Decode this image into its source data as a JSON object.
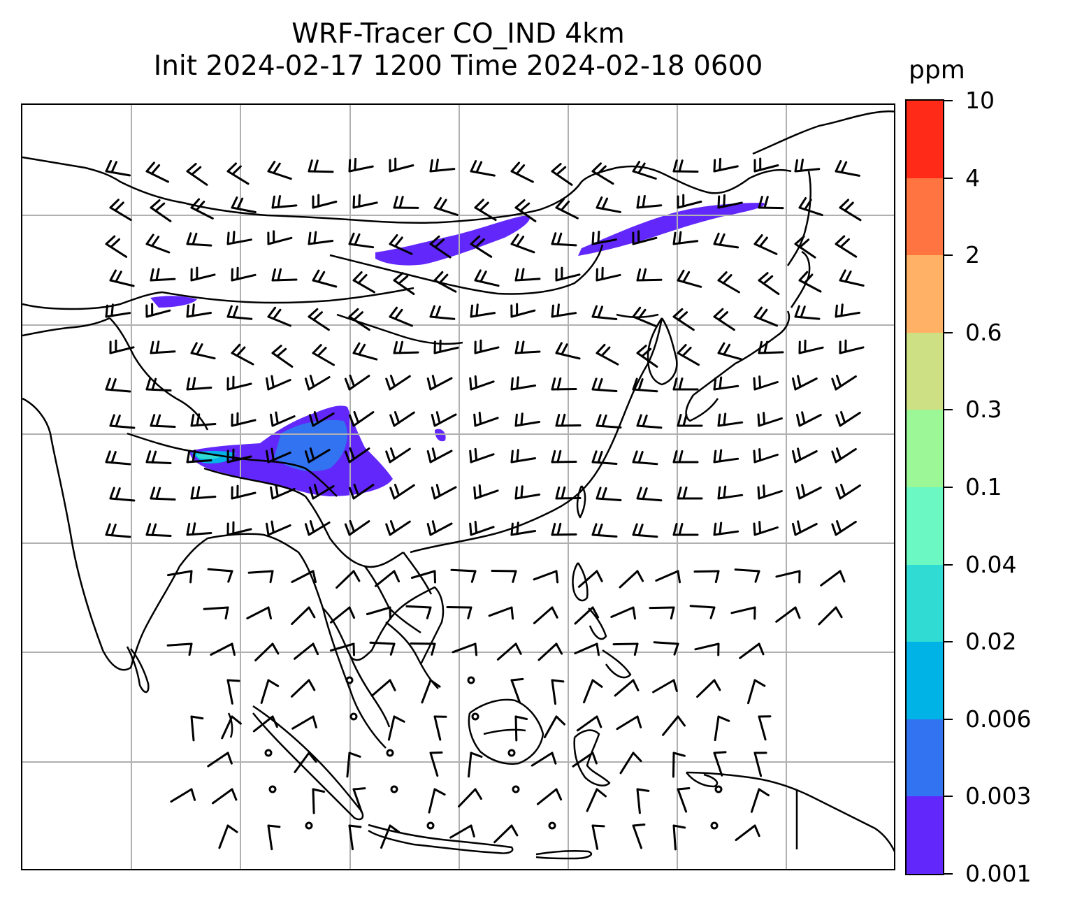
{
  "title": {
    "line1": "WRF-Tracer CO_IND 4km",
    "line2": "Init 2024-02-17 1200 Time 2024-02-18 0600"
  },
  "map": {
    "variable": "CO_IND",
    "resolution": "4km",
    "init_time": "2024-02-17 1200",
    "valid_time": "2024-02-18 0600",
    "gridlines": true,
    "features": [
      "coastlines",
      "country-borders",
      "wind-barbs",
      "tracer-shading"
    ],
    "coastline_color": "#000000",
    "grid_color": "#b0b0b0"
  },
  "colorbar": {
    "unit": "ppm",
    "levels": [
      "0.001",
      "0.003",
      "0.006",
      "0.02",
      "0.04",
      "0.1",
      "0.3",
      "0.6",
      "2",
      "4",
      "10"
    ],
    "colors": [
      "#6228fb",
      "#3273f2",
      "#00b3e6",
      "#2fdbd3",
      "#6cf8c2",
      "#9cf897",
      "#cde084",
      "#ffb265",
      "#ff7440",
      "#ff2a18"
    ]
  }
}
